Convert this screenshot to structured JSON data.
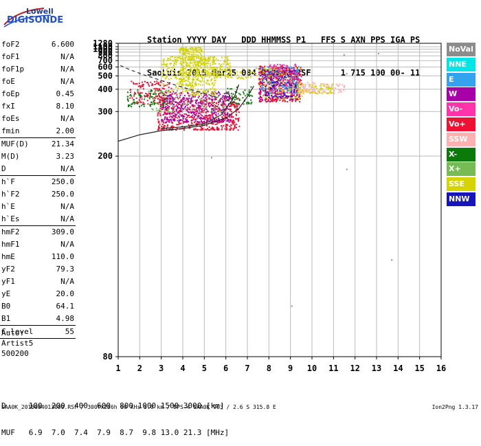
{
  "logo": {
    "line1": "Lowell",
    "line2": "DIGISONDE"
  },
  "header": {
    "line1": "Station YYYY DAY   DDD HHMMSS P1   FFS S AXN PPS IGA PS",
    "line2": "SaoLuis 2015 Mar25 084 013000 RSF      1 715 100 00- 11"
  },
  "params": [
    {
      "name": "foF2",
      "value": "6.600"
    },
    {
      "name": "foF1",
      "value": "N/A"
    },
    {
      "name": "foF1p",
      "value": "N/A"
    },
    {
      "name": "foE",
      "value": "N/A"
    },
    {
      "name": "foEp",
      "value": "0.45"
    },
    {
      "name": "fxI",
      "value": "8.10"
    },
    {
      "name": "foEs",
      "value": "N/A"
    },
    {
      "name": "fmin",
      "value": "2.00"
    },
    {
      "sep": true
    },
    {
      "name": "MUF(D)",
      "value": "21.34"
    },
    {
      "name": "M(D)",
      "value": "3.23"
    },
    {
      "name": "D",
      "value": "N/A"
    },
    {
      "sep": true
    },
    {
      "name": "h`F",
      "value": "250.0"
    },
    {
      "name": "h`F2",
      "value": "250.0"
    },
    {
      "name": "h`E",
      "value": "N/A"
    },
    {
      "name": "h`Es",
      "value": "N/A"
    },
    {
      "sep": true
    },
    {
      "name": "hmF2",
      "value": "309.0"
    },
    {
      "name": "hmF1",
      "value": "N/A"
    },
    {
      "name": "hmE",
      "value": "110.0"
    },
    {
      "name": "yF2",
      "value": "79.3"
    },
    {
      "name": "yF1",
      "value": "N/A"
    },
    {
      "name": "yE",
      "value": "20.0"
    },
    {
      "name": "B0",
      "value": "64.1"
    },
    {
      "name": "B1",
      "value": "4.98"
    },
    {
      "sep": true
    },
    {
      "name": "C-level",
      "value": "55"
    },
    {
      "sep": true
    }
  ],
  "text_rows": [
    "Auto:",
    "Artist5",
    "500200"
  ],
  "legend": [
    {
      "label": "NoVal",
      "color": "#8c8c8c"
    },
    {
      "label": "NNE",
      "color": "#00e5e5"
    },
    {
      "label": "E",
      "color": "#33a3ee"
    },
    {
      "label": "W",
      "color": "#a800a8"
    },
    {
      "label": "Vo-",
      "color": "#ff33aa"
    },
    {
      "label": "Vo+",
      "color": "#ee1133"
    },
    {
      "label": "SSW",
      "color": "#ffb0b0"
    },
    {
      "label": "X-",
      "color": "#0a7a0a"
    },
    {
      "label": "X+",
      "color": "#77bb55"
    },
    {
      "label": "SSE",
      "color": "#d4d400"
    },
    {
      "label": "NNW",
      "color": "#1515bb"
    }
  ],
  "footer": {
    "line1": "D     100  200  400  600  800 1000 1500 3000 [km]",
    "line2": "MUF   6.9  7.0  7.4  7.9  8.7  9.8 13.0 21.3 [MHz]",
    "note": "SAA0K_2015084013000.RSF / 300fx256h 50 kHs 5.0 km / DPS-4 SAA0K 903 / 2.6 S 315.8 E",
    "version": "Ion2Png 1.3.17"
  },
  "chart_data": {
    "type": "scatter",
    "xlim": [
      1,
      16
    ],
    "ylim": [
      80,
      1280
    ],
    "x_ticks": [
      1,
      2,
      3,
      4,
      5,
      6,
      7,
      8,
      9,
      10,
      11,
      12,
      13,
      14,
      15,
      16
    ],
    "y_ticks": [
      80,
      200,
      300,
      400,
      500,
      600,
      700,
      800,
      900,
      1000,
      1100,
      1280
    ],
    "y_scale": "reciprocal",
    "grid": true,
    "legend_position": "right",
    "clusters": [
      {
        "x": [
          1.5,
          3.5
        ],
        "y": [
          330,
          460
        ],
        "n": 150,
        "color": "#ee1133"
      },
      {
        "x": [
          2.8,
          6.6
        ],
        "y": [
          250,
          360
        ],
        "n": 600,
        "color": "#ee1133"
      },
      {
        "x": [
          3.0,
          6.2
        ],
        "y": [
          270,
          390
        ],
        "n": 420,
        "color": "#a800a8"
      },
      {
        "x": [
          3.0,
          5.5
        ],
        "y": [
          370,
          800
        ],
        "n": 320,
        "color": "#d4d400"
      },
      {
        "x": [
          3.8,
          4.9
        ],
        "y": [
          420,
          1100
        ],
        "n": 240,
        "color": "#d4d400"
      },
      {
        "x": [
          4.6,
          6.2
        ],
        "y": [
          500,
          800
        ],
        "n": 120,
        "color": "#d4d400"
      },
      {
        "x": [
          5.2,
          7.8
        ],
        "y": [
          480,
          600
        ],
        "n": 80,
        "color": "#d4d400"
      },
      {
        "x": [
          1.4,
          3.2
        ],
        "y": [
          320,
          400
        ],
        "n": 80,
        "color": "#0a7a0a"
      },
      {
        "x": [
          2.5,
          6.0
        ],
        "y": [
          300,
          400
        ],
        "n": 80,
        "color": "#77bb55"
      },
      {
        "x": [
          6.0,
          7.2
        ],
        "y": [
          330,
          420
        ],
        "n": 60,
        "color": "#0a7a0a"
      },
      {
        "x": [
          7.5,
          9.5
        ],
        "y": [
          340,
          620
        ],
        "n": 420,
        "color": "#ee1133"
      },
      {
        "x": [
          7.5,
          9.4
        ],
        "y": [
          350,
          600
        ],
        "n": 200,
        "color": "#a800a8"
      },
      {
        "x": [
          7.8,
          9.3
        ],
        "y": [
          360,
          560
        ],
        "n": 130,
        "color": "#1515bb"
      },
      {
        "x": [
          7.6,
          9.4
        ],
        "y": [
          380,
          620
        ],
        "n": 120,
        "color": "#33a3ee"
      },
      {
        "x": [
          8.0,
          9.4
        ],
        "y": [
          380,
          650
        ],
        "n": 90,
        "color": "#ff33aa"
      },
      {
        "x": [
          7.5,
          9.6
        ],
        "y": [
          350,
          600
        ],
        "n": 90,
        "color": "#d4d400"
      },
      {
        "x": [
          9.3,
          11.5
        ],
        "y": [
          380,
          450
        ],
        "n": 110,
        "color": "#ffb0b0"
      },
      {
        "x": [
          9.3,
          11.0
        ],
        "y": [
          380,
          440
        ],
        "n": 60,
        "color": "#d4d400"
      },
      {
        "x": [
          1.5,
          16
        ],
        "y": [
          80,
          1280
        ],
        "n": 14,
        "color": "#8c8c8c"
      }
    ],
    "curves": [
      {
        "name": "dashed",
        "x": [
          1.1,
          1.6,
          2.2,
          3.0,
          3.8,
          4.6,
          5.2,
          5.8,
          6.2,
          6.5
        ],
        "y": [
          620,
          560,
          510,
          460,
          420,
          390,
          370,
          350,
          338,
          330
        ],
        "style": "dashed"
      },
      {
        "name": "virtual-height",
        "x": [
          1.0,
          2.0,
          3.0,
          4.0,
          5.0,
          6.0,
          6.6,
          7.0,
          7.3
        ],
        "y": [
          225,
          238,
          247,
          252,
          260,
          280,
          310,
          360,
          420
        ],
        "style": "solid"
      },
      {
        "name": "true-height",
        "x": [
          3.0,
          4.0,
          5.0,
          5.8,
          6.4,
          6.6
        ],
        "y": [
          252,
          256,
          264,
          290,
          360,
          430
        ],
        "style": "solid"
      }
    ]
  }
}
